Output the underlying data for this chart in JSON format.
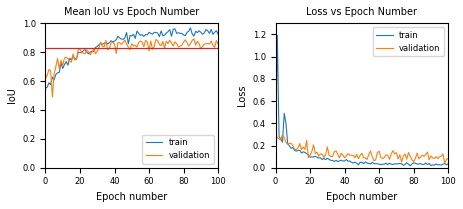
{
  "left_title": "Mean IoU vs Epoch Number",
  "right_title": "Loss vs Epoch Number",
  "xlabel": "Epoch number",
  "left_ylabel": "IoU",
  "right_ylabel": "Loss",
  "epochs": 101,
  "hline_y": 0.83,
  "hline_color": "#d62728",
  "train_color": "#1f77b4",
  "val_color": "#ff7f0e",
  "legend_loc_left": "lower right",
  "legend_loc_right": "upper right",
  "left_ylim": [
    0.0,
    1.0
  ],
  "right_ylim": [
    0.0,
    1.3
  ],
  "left_yticks": [
    0.0,
    0.2,
    0.4,
    0.6,
    0.8,
    1.0
  ],
  "right_yticks": [
    0.0,
    0.2,
    0.4,
    0.6,
    0.8,
    1.0,
    1.2
  ],
  "title_fontsize": 7,
  "label_fontsize": 7,
  "tick_fontsize": 6,
  "legend_fontsize": 6,
  "linewidth": 0.8,
  "seed": 12
}
